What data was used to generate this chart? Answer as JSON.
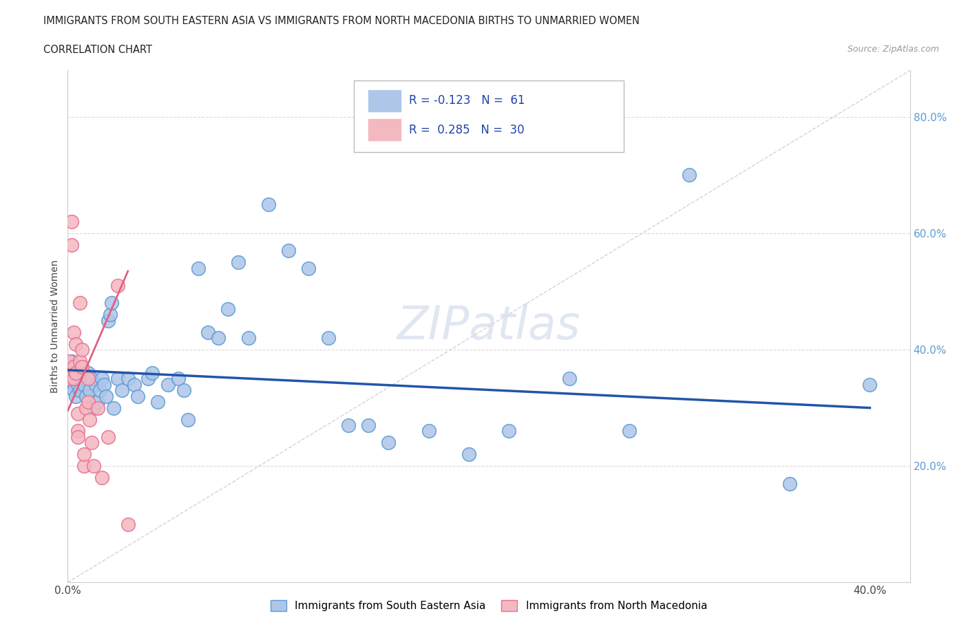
{
  "title_line1": "IMMIGRANTS FROM SOUTH EASTERN ASIA VS IMMIGRANTS FROM NORTH MACEDONIA BIRTHS TO UNMARRIED WOMEN",
  "title_line2": "CORRELATION CHART",
  "source_text": "Source: ZipAtlas.com",
  "ylabel": "Births to Unmarried Women",
  "xlim": [
    0.0,
    0.42
  ],
  "ylim": [
    0.0,
    0.88
  ],
  "xticks": [
    0.0,
    0.05,
    0.1,
    0.15,
    0.2,
    0.25,
    0.3,
    0.35,
    0.4
  ],
  "yticks": [
    0.0,
    0.1,
    0.2,
    0.3,
    0.4,
    0.5,
    0.6,
    0.7,
    0.8
  ],
  "ytick_labels": [
    "",
    "",
    "20.0%",
    "",
    "40.0%",
    "",
    "60.0%",
    "",
    "80.0%"
  ],
  "blue_scatter_x": [
    0.001,
    0.001,
    0.002,
    0.002,
    0.003,
    0.003,
    0.004,
    0.004,
    0.005,
    0.005,
    0.006,
    0.007,
    0.008,
    0.009,
    0.01,
    0.011,
    0.012,
    0.013,
    0.014,
    0.015,
    0.016,
    0.017,
    0.018,
    0.019,
    0.02,
    0.021,
    0.022,
    0.023,
    0.025,
    0.027,
    0.03,
    0.033,
    0.035,
    0.04,
    0.042,
    0.045,
    0.05,
    0.055,
    0.058,
    0.06,
    0.065,
    0.07,
    0.075,
    0.08,
    0.085,
    0.09,
    0.1,
    0.11,
    0.12,
    0.13,
    0.14,
    0.15,
    0.16,
    0.18,
    0.2,
    0.22,
    0.25,
    0.28,
    0.31,
    0.36,
    0.4
  ],
  "blue_scatter_y": [
    0.37,
    0.35,
    0.36,
    0.38,
    0.34,
    0.33,
    0.35,
    0.32,
    0.34,
    0.36,
    0.33,
    0.35,
    0.34,
    0.32,
    0.36,
    0.33,
    0.35,
    0.3,
    0.34,
    0.31,
    0.33,
    0.35,
    0.34,
    0.32,
    0.45,
    0.46,
    0.48,
    0.3,
    0.35,
    0.33,
    0.35,
    0.34,
    0.32,
    0.35,
    0.36,
    0.31,
    0.34,
    0.35,
    0.33,
    0.28,
    0.54,
    0.43,
    0.42,
    0.47,
    0.55,
    0.42,
    0.65,
    0.57,
    0.54,
    0.42,
    0.27,
    0.27,
    0.24,
    0.26,
    0.22,
    0.26,
    0.35,
    0.26,
    0.7,
    0.17,
    0.34
  ],
  "pink_scatter_x": [
    0.001,
    0.001,
    0.001,
    0.002,
    0.002,
    0.003,
    0.003,
    0.003,
    0.004,
    0.004,
    0.005,
    0.005,
    0.005,
    0.006,
    0.006,
    0.007,
    0.007,
    0.008,
    0.008,
    0.009,
    0.01,
    0.01,
    0.011,
    0.012,
    0.013,
    0.015,
    0.017,
    0.02,
    0.025,
    0.03
  ],
  "pink_scatter_y": [
    0.36,
    0.38,
    0.35,
    0.62,
    0.58,
    0.43,
    0.37,
    0.35,
    0.41,
    0.36,
    0.26,
    0.29,
    0.25,
    0.48,
    0.38,
    0.4,
    0.37,
    0.2,
    0.22,
    0.3,
    0.35,
    0.31,
    0.28,
    0.24,
    0.2,
    0.3,
    0.18,
    0.25,
    0.51,
    0.1
  ],
  "blue_dot_color": "#aec6e8",
  "blue_dot_edge": "#5b9bd5",
  "pink_dot_color": "#f4b8c1",
  "pink_dot_edge": "#e87090",
  "blue_line_color": "#2255aa",
  "pink_line_color": "#e06080",
  "ref_line_color": "#c8c8c8",
  "watermark_color": "#ccd8ea",
  "grid_color": "#cccccc",
  "background_color": "#ffffff",
  "blue_line_x0": 0.0,
  "blue_line_x1": 0.4,
  "blue_line_y0": 0.365,
  "blue_line_y1": 0.3,
  "pink_line_x0": 0.0,
  "pink_line_x1": 0.03,
  "pink_line_y0": 0.295,
  "pink_line_y1": 0.535
}
